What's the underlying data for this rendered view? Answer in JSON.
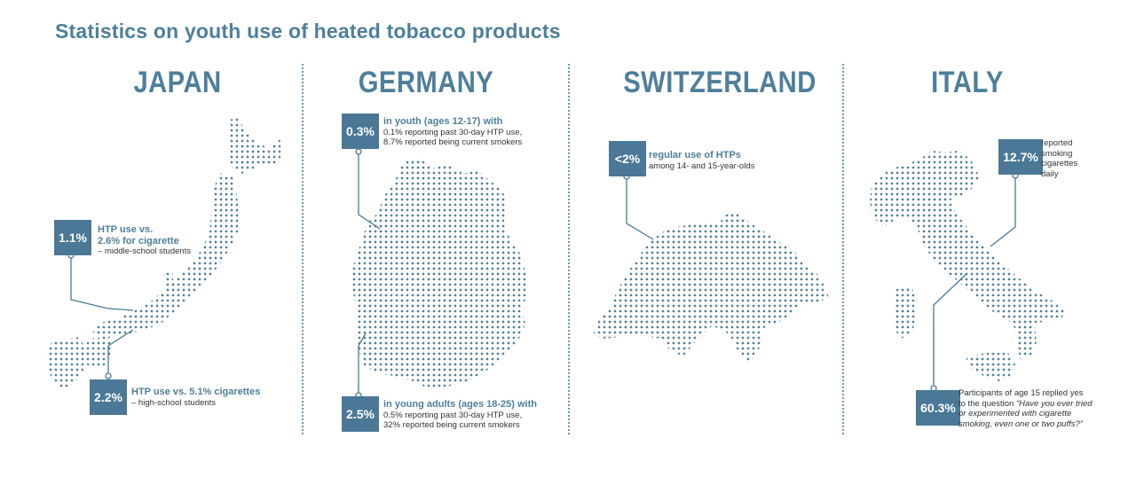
{
  "title": "Statistics on youth use of heated tobacco products",
  "colors": {
    "accent": "#4a7896",
    "map": "#4e7f9b",
    "divider": "#6f98b0"
  },
  "countries": {
    "japan": {
      "name": "JAPAN",
      "stats": [
        {
          "value": "1.1%",
          "highlight_line1": "HTP use vs.",
          "highlight_line2": "2.6% for cigarette",
          "detail": "– middle-school students"
        },
        {
          "value": "2.2%",
          "highlight_line1": "HTP use vs. 5.1% cigarettes",
          "detail": "– high-school students"
        }
      ]
    },
    "germany": {
      "name": "GERMANY",
      "stats": [
        {
          "value": "0.3%",
          "highlight": "in youth (ages 12-17) with",
          "detail_line1": "0.1% reporting past 30-day HTP use,",
          "detail_line2": "8.7% reported being current smokers"
        },
        {
          "value": "2.5%",
          "highlight": "in young adults (ages 18-25) with",
          "detail_line1": "0.5% reporting past 30-day HTP use,",
          "detail_line2": "32% reported being current smokers"
        }
      ]
    },
    "switzerland": {
      "name": "SWITZERLAND",
      "stats": [
        {
          "value": "<2%",
          "highlight": "regular use of HTPs",
          "detail": "among 14- and 15-year-olds"
        }
      ]
    },
    "italy": {
      "name": "ITALY",
      "stats": [
        {
          "value": "12.7%",
          "line1": "reported",
          "line2": "smoking",
          "line3": "cigarettes",
          "line4": "daily"
        },
        {
          "value": "60.3%",
          "line1": "Participants of age 15 replied yes",
          "line2": "to the question",
          "question_line1": "“Have you ever tried",
          "question_line2": "or experimented with cigarette",
          "question_line3": "smoking, even one or two puffs?”"
        }
      ]
    }
  }
}
